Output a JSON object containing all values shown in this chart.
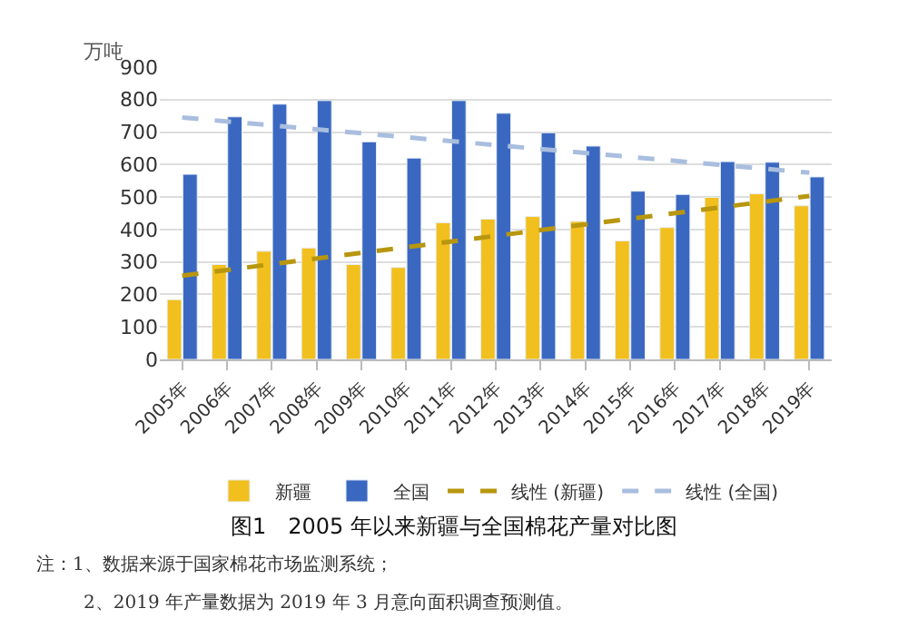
{
  "chart_data": {
    "type": "bar",
    "title": "图1　2005 年以来新疆与全国棉花产量对比图",
    "ylabel": "万吨",
    "categories": [
      "2005年",
      "2006年",
      "2007年",
      "2008年",
      "2009年",
      "2010年",
      "2011年",
      "2012年",
      "2013年",
      "2014年",
      "2015年",
      "2016年",
      "2017年",
      "2018年",
      "2019年"
    ],
    "series": [
      {
        "name": "新疆",
        "color": "#f2c01e",
        "values": [
          184,
          292,
          333,
          343,
          292,
          283,
          421,
          432,
          440,
          425,
          365,
          406,
          499,
          510,
          473
        ]
      },
      {
        "name": "全国",
        "color": "#3a68c0",
        "values": [
          570,
          747,
          786,
          797,
          670,
          620,
          797,
          758,
          698,
          657,
          518,
          508,
          609,
          607,
          562
        ]
      },
      {
        "name": "线性 (新疆)",
        "type": "line",
        "line_style": "dashed",
        "color": "#b8960f",
        "x": [
          "2005年",
          "2019年"
        ],
        "values": [
          258,
          503
        ]
      },
      {
        "name": "线性 (全国)",
        "type": "line",
        "line_style": "dashed",
        "color": "#a9bedf",
        "x": [
          "2005年",
          "2019年"
        ],
        "values": [
          745,
          575
        ]
      }
    ],
    "ylim": [
      0,
      900
    ],
    "yticks": [
      0,
      100,
      200,
      300,
      400,
      500,
      600,
      700,
      800,
      900
    ],
    "grid": "y",
    "legend": "bottom",
    "annotations": [
      "注：1、数据来源于国家棉花市场监测系统；",
      "2、2019 年产量数据为 2019 年 3 月意向面积调查预测值。"
    ]
  }
}
